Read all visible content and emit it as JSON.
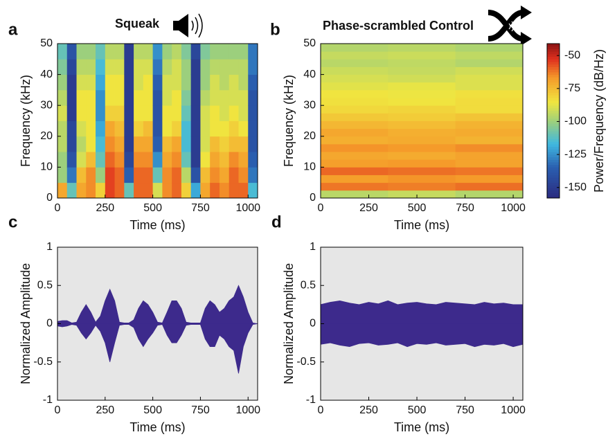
{
  "chart_data": [
    {
      "type": "heatmap",
      "panel_label": "a",
      "title": "Squeak",
      "xlabel": "Time (ms)",
      "ylabel": "Frequency (kHz)",
      "colormap": "jet",
      "xbins": [
        0,
        50,
        100,
        150,
        200,
        250,
        300,
        350,
        400,
        450,
        500,
        550,
        600,
        650,
        700,
        750,
        800,
        850,
        900,
        950,
        1000,
        1050
      ],
      "ybins": [
        0,
        5,
        10,
        15,
        20,
        25,
        30,
        35,
        40,
        45,
        50
      ],
      "z": [
        [
          -70,
          -100,
          -100,
          -95,
          -95,
          -90,
          -95,
          -100,
          -105,
          -110
        ],
        [
          -110,
          -130,
          -140,
          -145,
          -145,
          -150,
          -150,
          -150,
          -145,
          -140
        ],
        [
          -70,
          -75,
          -90,
          -95,
          -90,
          -85,
          -85,
          -90,
          -95,
          -100
        ],
        [
          -65,
          -65,
          -75,
          -85,
          -85,
          -85,
          -85,
          -90,
          -95,
          -100
        ],
        [
          -80,
          -100,
          -110,
          -115,
          -120,
          -125,
          -125,
          -120,
          -115,
          -110
        ],
        [
          -55,
          -55,
          -60,
          -65,
          -70,
          -80,
          -85,
          -85,
          -90,
          -95
        ],
        [
          -60,
          -60,
          -65,
          -70,
          -75,
          -80,
          -85,
          -85,
          -90,
          -95
        ],
        [
          -110,
          -135,
          -145,
          -150,
          -150,
          -150,
          -150,
          -150,
          -150,
          -150
        ],
        [
          -60,
          -60,
          -65,
          -70,
          -80,
          -85,
          -85,
          -90,
          -90,
          -95
        ],
        [
          -60,
          -60,
          -65,
          -70,
          -75,
          -85,
          -85,
          -85,
          -90,
          -95
        ],
        [
          -90,
          -110,
          -125,
          -135,
          -140,
          -140,
          -140,
          -135,
          -130,
          -125
        ],
        [
          -65,
          -65,
          -70,
          -75,
          -85,
          -85,
          -90,
          -90,
          -95,
          -100
        ],
        [
          -60,
          -60,
          -65,
          -70,
          -80,
          -85,
          -85,
          -90,
          -90,
          -95
        ],
        [
          -80,
          -95,
          -110,
          -115,
          -115,
          -110,
          -105,
          -100,
          -100,
          -105
        ],
        [
          -120,
          -140,
          -150,
          -150,
          -150,
          -150,
          -150,
          -150,
          -150,
          -145
        ],
        [
          -70,
          -75,
          -85,
          -90,
          -90,
          -90,
          -95,
          -100,
          -100,
          -105
        ],
        [
          -60,
          -65,
          -70,
          -75,
          -85,
          -85,
          -90,
          -90,
          -95,
          -100
        ],
        [
          -65,
          -70,
          -75,
          -80,
          -85,
          -90,
          -90,
          -95,
          -95,
          -100
        ],
        [
          -60,
          -60,
          -65,
          -75,
          -80,
          -85,
          -90,
          -90,
          -95,
          -100
        ],
        [
          -60,
          -65,
          -70,
          -75,
          -85,
          -90,
          -90,
          -95,
          -95,
          -100
        ],
        [
          -115,
          -130,
          -135,
          -140,
          -140,
          -140,
          -140,
          -135,
          -130,
          -130
        ]
      ],
      "xlim": [
        0,
        1050
      ],
      "ylim": [
        0,
        50
      ],
      "xticks": [
        0,
        250,
        500,
        750,
        1000
      ],
      "yticks": [
        0,
        10,
        20,
        30,
        40,
        50
      ]
    },
    {
      "type": "heatmap",
      "panel_label": "b",
      "title": "Phase-scrambled Control",
      "xlabel": "Time (ms)",
      "ylabel": "Frequency (kHz)",
      "colormap": "jet",
      "xbins": [
        0,
        350,
        700,
        1050
      ],
      "ybins": [
        0,
        2.5,
        5,
        7.5,
        10,
        12.5,
        15,
        17.5,
        20,
        22.5,
        25,
        27.5,
        30,
        32.5,
        35,
        37.5,
        40,
        42.5,
        45,
        47.5,
        50
      ],
      "z": [
        [
          -95,
          -62,
          -68,
          -60,
          -68,
          -70,
          -66,
          -72,
          -70,
          -74,
          -78,
          -82,
          -84,
          -85,
          -88,
          -90,
          -92,
          -95,
          -93,
          -96
        ],
        [
          -93,
          -63,
          -66,
          -61,
          -67,
          -71,
          -67,
          -71,
          -72,
          -75,
          -79,
          -81,
          -85,
          -86,
          -87,
          -91,
          -93,
          -94,
          -92,
          -95
        ],
        [
          -96,
          -61,
          -67,
          -62,
          -69,
          -69,
          -65,
          -73,
          -71,
          -73,
          -77,
          -83,
          -83,
          -84,
          -89,
          -89,
          -91,
          -96,
          -94,
          -97
        ]
      ],
      "xlim": [
        0,
        1050
      ],
      "ylim": [
        0,
        50
      ],
      "xticks": [
        0,
        250,
        500,
        750,
        1000
      ],
      "yticks": [
        0,
        10,
        20,
        30,
        40,
        50
      ]
    },
    {
      "type": "colorbar",
      "label": "Power/Frequency (dB/Hz)",
      "colormap": "jet",
      "clim": [
        -158,
        -41
      ],
      "cticks": [
        -150,
        -125,
        -100,
        -75,
        -50
      ]
    },
    {
      "type": "area",
      "panel_label": "c",
      "xlabel": "Time (ms)",
      "ylabel": "Normalized Amplitude",
      "background": "#e6e6e6",
      "x": [
        0,
        25,
        50,
        75,
        100,
        125,
        150,
        175,
        200,
        225,
        250,
        275,
        300,
        325,
        350,
        375,
        400,
        425,
        450,
        475,
        500,
        525,
        550,
        575,
        600,
        625,
        650,
        675,
        700,
        725,
        750,
        775,
        800,
        825,
        850,
        875,
        900,
        925,
        950,
        975,
        1000,
        1025,
        1050
      ],
      "series": [
        {
          "color": "#3d2a8c",
          "values": [
            0.03,
            0.04,
            0.04,
            0.01,
            0.02,
            0.15,
            0.25,
            0.15,
            0.02,
            0.1,
            0.3,
            0.45,
            0.3,
            0.02,
            0.01,
            0.01,
            0.05,
            0.2,
            0.3,
            0.25,
            0.15,
            0.02,
            0.01,
            0.15,
            0.3,
            0.3,
            0.2,
            0.02,
            0.01,
            0.01,
            0.01,
            0.2,
            0.3,
            0.25,
            0.15,
            0.2,
            0.3,
            0.35,
            0.5,
            0.35,
            0.15,
            0.01,
            0
          ]
        },
        {
          "color": "#3d2a8c",
          "values": [
            -0.03,
            -0.04,
            -0.03,
            -0.01,
            -0.02,
            -0.12,
            -0.2,
            -0.12,
            -0.02,
            -0.1,
            -0.25,
            -0.5,
            -0.25,
            -0.02,
            -0.01,
            -0.01,
            -0.05,
            -0.2,
            -0.3,
            -0.2,
            -0.12,
            -0.02,
            -0.01,
            -0.15,
            -0.25,
            -0.25,
            -0.15,
            -0.02,
            -0.01,
            -0.01,
            -0.01,
            -0.2,
            -0.3,
            -0.3,
            -0.15,
            -0.2,
            -0.3,
            -0.35,
            -0.65,
            -0.3,
            -0.12,
            -0.01,
            0
          ]
        }
      ],
      "xlim": [
        0,
        1050
      ],
      "ylim": [
        -1,
        1
      ],
      "xticks": [
        0,
        250,
        500,
        750,
        1000
      ],
      "yticks": [
        -1,
        -0.5,
        0,
        0.5,
        1
      ]
    },
    {
      "type": "area",
      "panel_label": "d",
      "xlabel": "Time (ms)",
      "ylabel": "Normalized Amplitude",
      "background": "#e6e6e6",
      "x": [
        0,
        50,
        100,
        150,
        200,
        250,
        300,
        350,
        400,
        450,
        500,
        550,
        600,
        650,
        700,
        750,
        800,
        850,
        900,
        950,
        1000,
        1050
      ],
      "series": [
        {
          "color": "#3d2a8c",
          "values": [
            0.25,
            0.28,
            0.3,
            0.27,
            0.25,
            0.28,
            0.26,
            0.3,
            0.25,
            0.27,
            0.28,
            0.26,
            0.25,
            0.28,
            0.27,
            0.26,
            0.25,
            0.28,
            0.26,
            0.27,
            0.25,
            0.25
          ]
        },
        {
          "color": "#3d2a8c",
          "values": [
            -0.27,
            -0.25,
            -0.28,
            -0.3,
            -0.26,
            -0.25,
            -0.28,
            -0.27,
            -0.25,
            -0.3,
            -0.26,
            -0.27,
            -0.25,
            -0.28,
            -0.27,
            -0.26,
            -0.3,
            -0.27,
            -0.28,
            -0.26,
            -0.3,
            -0.27
          ]
        }
      ],
      "xlim": [
        0,
        1050
      ],
      "ylim": [
        -1,
        1
      ],
      "xticks": [
        0,
        250,
        500,
        750,
        1000
      ],
      "yticks": [
        -1,
        -0.5,
        0,
        0.5,
        1
      ]
    }
  ]
}
